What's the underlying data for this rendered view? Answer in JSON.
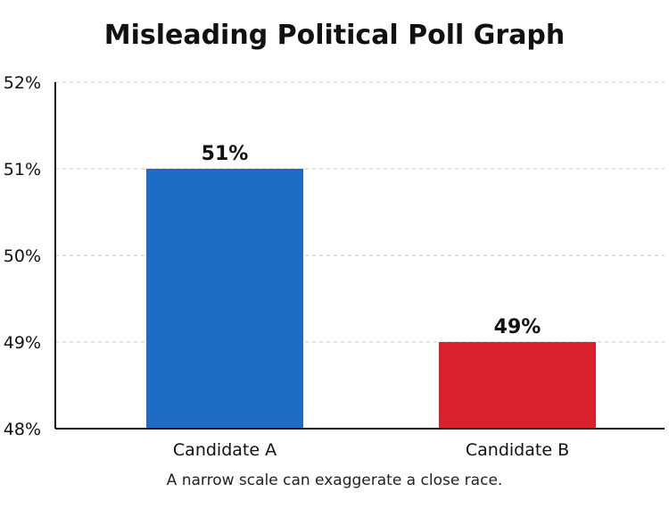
{
  "chart_data": {
    "type": "bar",
    "title": "Misleading Political Poll Graph",
    "categories": [
      "Candidate A",
      "Candidate B"
    ],
    "values": [
      51,
      49
    ],
    "data_labels": [
      "51%",
      "49%"
    ],
    "colors": [
      "#1f6cc6",
      "#d9222e"
    ],
    "ylim": [
      48,
      52
    ],
    "yticks": [
      48,
      49,
      50,
      51,
      52
    ],
    "ytick_labels": [
      "48%",
      "49%",
      "50%",
      "51%",
      "52%"
    ],
    "grid": true,
    "note": "A narrow scale can exaggerate a close race."
  }
}
